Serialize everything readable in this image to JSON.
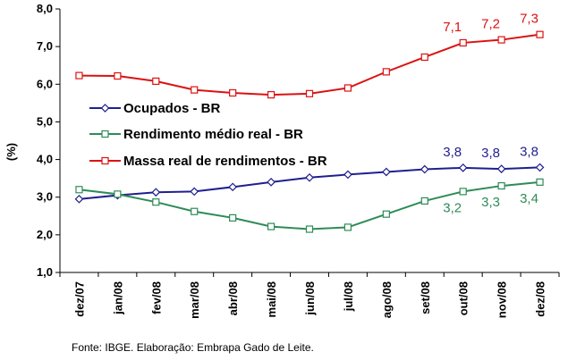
{
  "chart_data": {
    "type": "line",
    "ylabel": "(%)",
    "ylim": [
      1.0,
      8.0
    ],
    "yticks": [
      "1,0",
      "2,0",
      "3,0",
      "4,0",
      "5,0",
      "6,0",
      "7,0",
      "8,0"
    ],
    "categories": [
      "dez/07",
      "jan/08",
      "fev/08",
      "mar/08",
      "abr/08",
      "mai/08",
      "jun/08",
      "jul/08",
      "ago/08",
      "set/08",
      "out/08",
      "nov/08",
      "dez/08"
    ],
    "grid": false,
    "legend_position": "center-left",
    "series": [
      {
        "name": "Ocupados - BR",
        "color": "#1f1f8f",
        "marker": "diamond",
        "values": [
          2.95,
          3.05,
          3.13,
          3.15,
          3.27,
          3.4,
          3.52,
          3.6,
          3.67,
          3.74,
          3.78,
          3.75,
          3.79
        ],
        "data_labels": {
          "10": "3,8",
          "11": "3,8",
          "12": "3,8"
        }
      },
      {
        "name": "Rendimento médio real - BR",
        "color": "#2e8b57",
        "marker": "square",
        "values": [
          3.2,
          3.08,
          2.87,
          2.62,
          2.45,
          2.22,
          2.15,
          2.2,
          2.55,
          2.9,
          3.15,
          3.3,
          3.4
        ],
        "data_labels": {
          "10": "3,2",
          "11": "3,3",
          "12": "3,4"
        }
      },
      {
        "name": "Massa real de rendimentos - BR",
        "color": "#dd1111",
        "marker": "square",
        "values": [
          6.23,
          6.22,
          6.08,
          5.85,
          5.77,
          5.72,
          5.75,
          5.9,
          6.33,
          6.72,
          7.1,
          7.18,
          7.32
        ],
        "data_labels": {
          "10": "7,1",
          "11": "7,2",
          "12": "7,3"
        }
      }
    ]
  },
  "source_note": "Fonte: IBGE. Elaboração: Embrapa Gado de Leite."
}
